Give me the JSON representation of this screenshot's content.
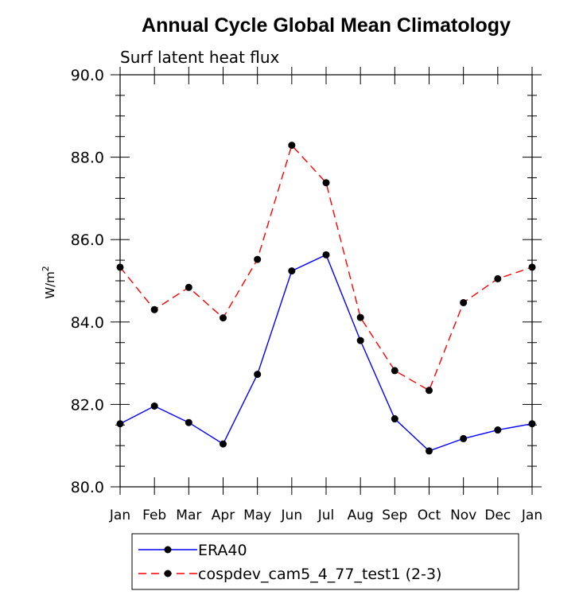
{
  "chart_data": {
    "type": "line",
    "title": "Annual Cycle Global Mean Climatology",
    "subtitle": "Surf latent heat flux",
    "xlabel": "",
    "ylabel": "W/m",
    "ylabel_superscript": "2",
    "categories": [
      "Jan",
      "Feb",
      "Mar",
      "Apr",
      "May",
      "Jun",
      "Jul",
      "Aug",
      "Sep",
      "Oct",
      "Nov",
      "Dec",
      "Jan"
    ],
    "ylim": [
      80.0,
      90.0
    ],
    "yticks": [
      "80.0",
      "82.0",
      "84.0",
      "86.0",
      "88.0",
      "90.0"
    ],
    "grid": false,
    "legend_position": "bottom",
    "series": [
      {
        "name": "ERA40",
        "color": "#0000ff",
        "line_style": "solid",
        "values": [
          81.53,
          81.96,
          81.56,
          81.04,
          82.73,
          85.24,
          85.63,
          83.55,
          81.65,
          80.87,
          81.17,
          81.38,
          81.53
        ]
      },
      {
        "name": "cospdev_cam5_4_77_test1 (2-3)",
        "color": "#ff0000",
        "line_style": "dashed",
        "values": [
          85.33,
          84.3,
          84.84,
          84.1,
          85.52,
          88.29,
          87.38,
          84.11,
          82.82,
          82.34,
          84.47,
          85.05,
          85.33
        ]
      }
    ]
  }
}
